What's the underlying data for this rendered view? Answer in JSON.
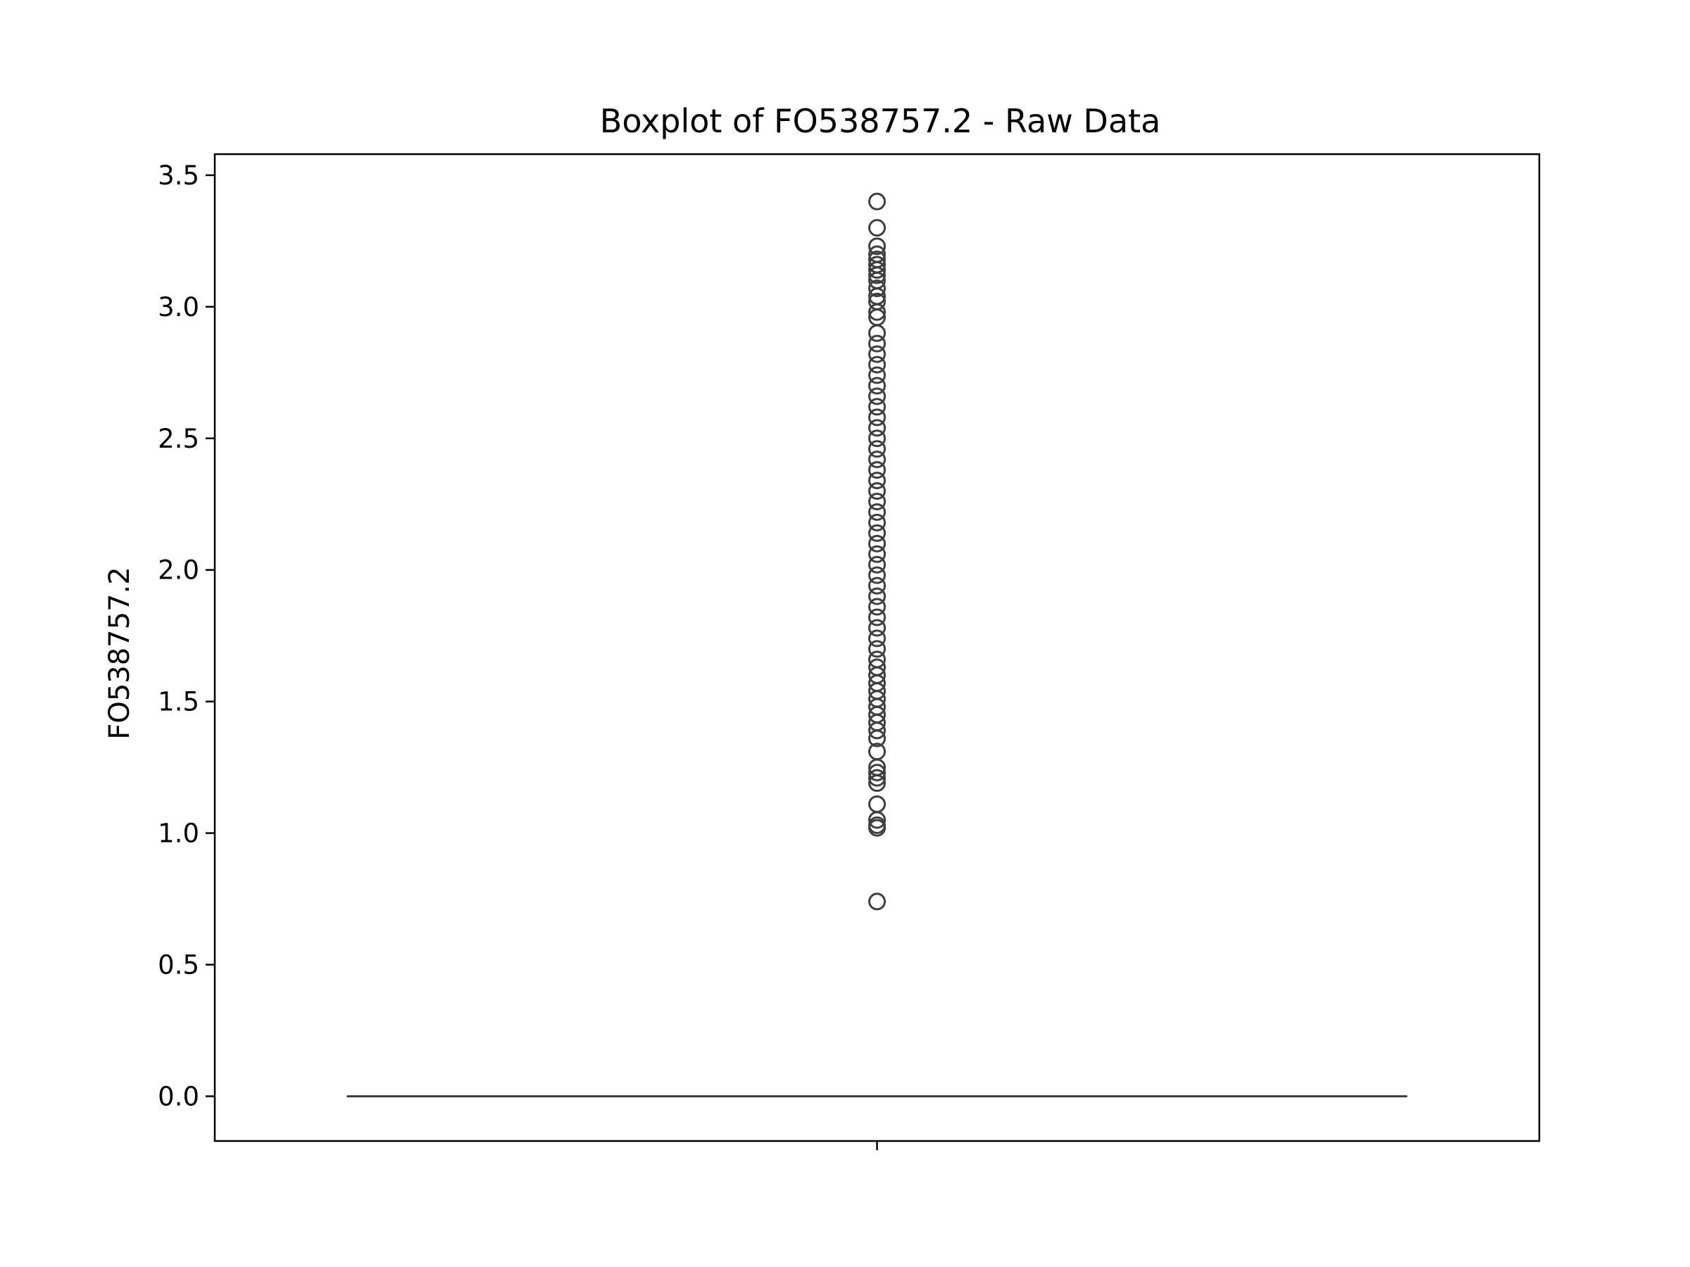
{
  "chart_data": {
    "type": "box",
    "title": "Boxplot of FO538757.2 - Raw Data",
    "xlabel": "",
    "ylabel": "FO538757.2",
    "ylim": [
      -0.17,
      3.58
    ],
    "yticks": [
      0.0,
      0.5,
      1.0,
      1.5,
      2.0,
      2.5,
      3.0,
      3.5
    ],
    "ytick_labels": [
      "0.0",
      "0.5",
      "1.0",
      "1.5",
      "2.0",
      "2.5",
      "3.0",
      "3.5"
    ],
    "grid": false,
    "box": {
      "q1": 0.0,
      "median": 0.0,
      "q3": 0.0,
      "whisker_low": 0.0,
      "whisker_high": 0.0
    },
    "outliers": [
      3.4,
      3.3,
      3.23,
      3.2,
      3.18,
      3.16,
      3.14,
      3.12,
      3.1,
      3.07,
      3.04,
      3.02,
      2.98,
      2.96,
      2.9,
      2.86,
      2.82,
      2.78,
      2.74,
      2.7,
      2.66,
      2.62,
      2.58,
      2.54,
      2.5,
      2.46,
      2.42,
      2.38,
      2.34,
      2.3,
      2.26,
      2.22,
      2.18,
      2.14,
      2.1,
      2.06,
      2.02,
      1.98,
      1.94,
      1.9,
      1.86,
      1.82,
      1.78,
      1.74,
      1.7,
      1.66,
      1.63,
      1.6,
      1.57,
      1.54,
      1.51,
      1.48,
      1.45,
      1.42,
      1.39,
      1.36,
      1.31,
      1.25,
      1.23,
      1.21,
      1.19,
      1.11,
      1.05,
      1.03,
      1.02,
      0.74
    ],
    "colors": {
      "box": "#3f3f3f",
      "outlier": "#3f3f3f",
      "axes": "#000000"
    }
  }
}
